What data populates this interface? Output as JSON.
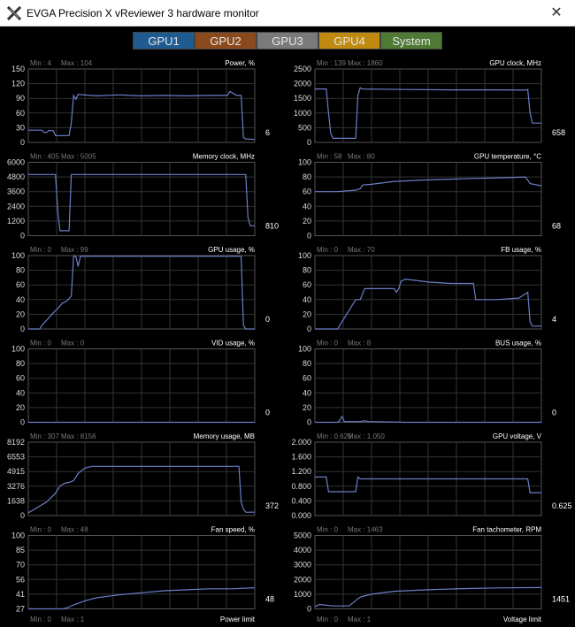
{
  "window": {
    "title": "EVGA Precision X vReviewer 3 hardware monitor",
    "close_glyph": "✕",
    "icon": "evga-x-logo-icon"
  },
  "tabs": [
    {
      "label": "GPU1",
      "color": "#1f5b8f"
    },
    {
      "label": "GPU2",
      "color": "#8b4a1d"
    },
    {
      "label": "GPU3",
      "color": "#7a7a7a"
    },
    {
      "label": "GPU4",
      "color": "#c08a10"
    },
    {
      "label": "System",
      "color": "#4f7a34"
    }
  ],
  "line_color": "#6a7fc8",
  "charts": [
    {
      "title": "Power, %",
      "min": "Min : 4",
      "max": "Max : 104",
      "current": "6",
      "ylim": [
        0,
        150
      ],
      "ticks": [
        "150",
        "120",
        "90",
        "60",
        "30",
        "0"
      ],
      "points": [
        [
          0,
          25
        ],
        [
          6,
          25
        ],
        [
          7,
          20
        ],
        [
          8,
          20
        ],
        [
          9,
          24
        ],
        [
          11,
          24
        ],
        [
          12,
          14
        ],
        [
          18,
          14
        ],
        [
          19,
          40
        ],
        [
          20,
          96
        ],
        [
          21,
          88
        ],
        [
          22,
          98
        ],
        [
          30,
          95
        ],
        [
          40,
          97
        ],
        [
          50,
          95
        ],
        [
          60,
          96
        ],
        [
          70,
          95
        ],
        [
          80,
          96
        ],
        [
          88,
          96
        ],
        [
          89,
          104
        ],
        [
          92,
          96
        ],
        [
          94,
          96
        ],
        [
          95,
          10
        ],
        [
          96,
          7
        ],
        [
          100,
          6
        ]
      ]
    },
    {
      "title": "GPU clock, MHz",
      "min": "Min : 139",
      "max": "Max : 1860",
      "current": "658",
      "ylim": [
        0,
        2500
      ],
      "ticks": [
        "2500",
        "2000",
        "1500",
        "1000",
        "500",
        "0"
      ],
      "points": [
        [
          0,
          1820
        ],
        [
          5,
          1820
        ],
        [
          6,
          1000
        ],
        [
          7,
          300
        ],
        [
          8,
          140
        ],
        [
          18,
          140
        ],
        [
          19,
          1600
        ],
        [
          20,
          1860
        ],
        [
          21,
          1820
        ],
        [
          40,
          1800
        ],
        [
          60,
          1790
        ],
        [
          80,
          1790
        ],
        [
          93,
          1780
        ],
        [
          94,
          1800
        ],
        [
          95,
          1000
        ],
        [
          96,
          658
        ],
        [
          100,
          658
        ]
      ]
    },
    {
      "title": "Memory clock, MHz",
      "min": "Min : 405",
      "max": "Max : 5005",
      "current": "810",
      "ylim": [
        0,
        6000
      ],
      "ticks": [
        "6000",
        "4800",
        "3600",
        "2400",
        "1200",
        "0"
      ],
      "points": [
        [
          0,
          5005
        ],
        [
          12,
          5005
        ],
        [
          13,
          2000
        ],
        [
          14,
          405
        ],
        [
          18,
          405
        ],
        [
          19,
          5005
        ],
        [
          96,
          5005
        ],
        [
          97,
          1500
        ],
        [
          98,
          810
        ],
        [
          100,
          810
        ]
      ]
    },
    {
      "title": "GPU temperature, °C",
      "min": "Min : 58",
      "max": "Max : 80",
      "current": "68",
      "ylim": [
        0,
        100
      ],
      "ticks": [
        "100",
        "80",
        "60",
        "40",
        "20",
        "0"
      ],
      "points": [
        [
          0,
          60
        ],
        [
          10,
          60
        ],
        [
          18,
          62
        ],
        [
          20,
          64
        ],
        [
          21,
          69
        ],
        [
          25,
          70
        ],
        [
          35,
          74
        ],
        [
          50,
          76
        ],
        [
          70,
          78
        ],
        [
          85,
          79
        ],
        [
          93,
          80
        ],
        [
          95,
          71
        ],
        [
          100,
          68
        ]
      ]
    },
    {
      "title": "GPU usage, %",
      "min": "Min : 0",
      "max": "Max : 99",
      "current": "0",
      "ylim": [
        0,
        100
      ],
      "ticks": [
        "100",
        "80",
        "60",
        "40",
        "20",
        "0"
      ],
      "points": [
        [
          0,
          0
        ],
        [
          5,
          0
        ],
        [
          6,
          5
        ],
        [
          9,
          15
        ],
        [
          11,
          22
        ],
        [
          13,
          28
        ],
        [
          15,
          35
        ],
        [
          17,
          38
        ],
        [
          19,
          45
        ],
        [
          20,
          99
        ],
        [
          21,
          99
        ],
        [
          22,
          85
        ],
        [
          23,
          99
        ],
        [
          50,
          99
        ],
        [
          80,
          99
        ],
        [
          93,
          99
        ],
        [
          94,
          99
        ],
        [
          95,
          5
        ],
        [
          96,
          0
        ],
        [
          100,
          0
        ]
      ]
    },
    {
      "title": "FB usage, %",
      "min": "Min : 0",
      "max": "Max : 70",
      "current": "4",
      "ylim": [
        0,
        100
      ],
      "ticks": [
        "100",
        "80",
        "60",
        "40",
        "20",
        "0"
      ],
      "points": [
        [
          0,
          0
        ],
        [
          10,
          0
        ],
        [
          12,
          10
        ],
        [
          14,
          20
        ],
        [
          16,
          30
        ],
        [
          18,
          40
        ],
        [
          20,
          40
        ],
        [
          22,
          55
        ],
        [
          35,
          55
        ],
        [
          36,
          50
        ],
        [
          37,
          55
        ],
        [
          38,
          65
        ],
        [
          40,
          68
        ],
        [
          50,
          64
        ],
        [
          60,
          62
        ],
        [
          70,
          62
        ],
        [
          71,
          40
        ],
        [
          80,
          40
        ],
        [
          90,
          42
        ],
        [
          94,
          50
        ],
        [
          95,
          10
        ],
        [
          96,
          4
        ],
        [
          100,
          4
        ]
      ]
    },
    {
      "title": "VID usage, %",
      "min": "Min : 0",
      "max": "Max : 0",
      "current": "0",
      "ylim": [
        0,
        100
      ],
      "ticks": [
        "100",
        "80",
        "60",
        "40",
        "20",
        "0"
      ],
      "points": [
        [
          0,
          0
        ],
        [
          100,
          0
        ]
      ]
    },
    {
      "title": "BUS usage, %",
      "min": "Min : 0",
      "max": "Max : 8",
      "current": "0",
      "ylim": [
        0,
        100
      ],
      "ticks": [
        "100",
        "80",
        "60",
        "40",
        "20",
        "0"
      ],
      "points": [
        [
          0,
          0
        ],
        [
          10,
          0
        ],
        [
          11,
          3
        ],
        [
          12,
          8
        ],
        [
          13,
          1
        ],
        [
          20,
          1
        ],
        [
          22,
          2
        ],
        [
          24,
          1
        ],
        [
          40,
          0
        ],
        [
          100,
          0
        ]
      ]
    },
    {
      "title": "Memory usage, MB",
      "min": "Min : 307",
      "max": "Max : 8156",
      "current": "372",
      "ylim": [
        0,
        8192
      ],
      "ticks": [
        "8192",
        "6553",
        "4915",
        "3276",
        "1638",
        "0"
      ],
      "points": [
        [
          0,
          307
        ],
        [
          4,
          900
        ],
        [
          8,
          1500
        ],
        [
          12,
          2500
        ],
        [
          14,
          3300
        ],
        [
          16,
          3600
        ],
        [
          18,
          3700
        ],
        [
          20,
          3900
        ],
        [
          22,
          4700
        ],
        [
          25,
          5300
        ],
        [
          28,
          5500
        ],
        [
          32,
          5500
        ],
        [
          50,
          5500
        ],
        [
          80,
          5500
        ],
        [
          92,
          5500
        ],
        [
          93,
          5500
        ],
        [
          94,
          1500
        ],
        [
          95,
          700
        ],
        [
          96,
          372
        ],
        [
          100,
          372
        ]
      ]
    },
    {
      "title": "GPU voltage, V",
      "min": "Min : 0.625",
      "max": "Max : 1.050",
      "current": "0.625",
      "ylim": [
        0,
        2
      ],
      "ticks": [
        "2.000",
        "1.600",
        "1.200",
        "0.800",
        "0.400",
        "0.000"
      ],
      "points": [
        [
          0,
          1.05
        ],
        [
          5,
          1.05
        ],
        [
          6,
          0.65
        ],
        [
          18,
          0.65
        ],
        [
          19,
          1.05
        ],
        [
          20,
          1.0
        ],
        [
          40,
          1.0
        ],
        [
          60,
          1.0
        ],
        [
          80,
          1.0
        ],
        [
          93,
          1.0
        ],
        [
          94,
          1.0
        ],
        [
          95,
          0.625
        ],
        [
          100,
          0.625
        ]
      ]
    },
    {
      "title": "Fan speed, %",
      "min": "Min : 0",
      "max": "Max : 48",
      "current": "48",
      "ylim": [
        27,
        100
      ],
      "ticks": [
        "100",
        "85",
        "70",
        "56",
        "41",
        "27"
      ],
      "points": [
        [
          0,
          27
        ],
        [
          15,
          27
        ],
        [
          17,
          28
        ],
        [
          20,
          31
        ],
        [
          25,
          35
        ],
        [
          30,
          38
        ],
        [
          40,
          41
        ],
        [
          50,
          43
        ],
        [
          60,
          45
        ],
        [
          70,
          46
        ],
        [
          80,
          47
        ],
        [
          90,
          47
        ],
        [
          100,
          48
        ]
      ]
    },
    {
      "title": "Fan tachometer, RPM",
      "min": "Min : 0",
      "max": "Max : 1463",
      "current": "1451",
      "ylim": [
        0,
        5000
      ],
      "ticks": [
        "5000",
        "4000",
        "3000",
        "2000",
        "1000",
        "0"
      ],
      "points": [
        [
          0,
          150
        ],
        [
          2,
          300
        ],
        [
          5,
          250
        ],
        [
          8,
          200
        ],
        [
          15,
          200
        ],
        [
          20,
          800
        ],
        [
          25,
          1000
        ],
        [
          35,
          1200
        ],
        [
          50,
          1300
        ],
        [
          65,
          1380
        ],
        [
          80,
          1430
        ],
        [
          100,
          1451
        ]
      ]
    }
  ],
  "bottom_labels": [
    {
      "min": "Min : 0",
      "max": "Max : 1",
      "title": "Power limit"
    },
    {
      "min": "Min : 0",
      "max": "Max : 1",
      "title": "Voltage limit"
    }
  ]
}
